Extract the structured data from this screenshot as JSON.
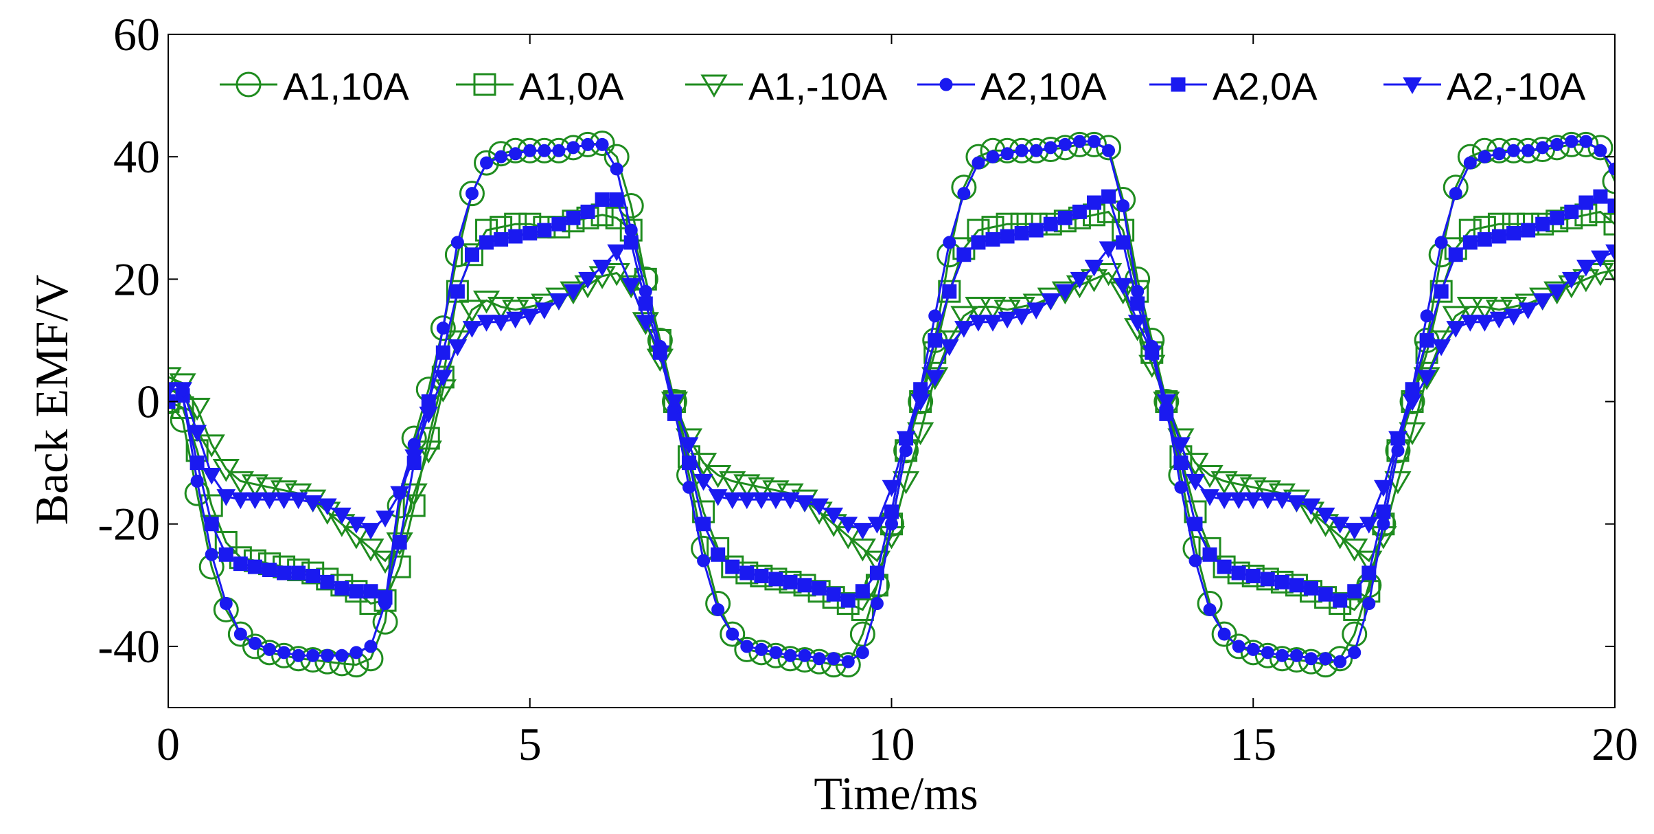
{
  "chart_data": {
    "type": "line",
    "title": "",
    "xlabel": "Time/ms",
    "ylabel": "Back EMF/V",
    "xlim": [
      0,
      20
    ],
    "ylim": [
      -50,
      60
    ],
    "xticks": [
      0,
      5,
      10,
      15,
      20
    ],
    "yticks": [
      -40,
      -20,
      0,
      20,
      40,
      60
    ],
    "grid": false,
    "legend_placement": "top",
    "x": [
      0.0,
      0.2,
      0.4,
      0.6,
      0.8,
      1.0,
      1.2,
      1.4,
      1.6,
      1.8,
      2.0,
      2.2,
      2.4,
      2.6,
      2.8,
      3.0,
      3.2,
      3.4,
      3.6,
      3.8,
      4.0,
      4.2,
      4.4,
      4.6,
      4.8,
      5.0,
      5.2,
      5.4,
      5.6,
      5.8,
      6.0,
      6.2,
      6.4,
      6.6,
      6.8,
      7.0,
      7.2,
      7.4,
      7.6,
      7.8,
      8.0,
      8.2,
      8.4,
      8.6,
      8.8,
      9.0,
      9.2,
      9.4,
      9.6,
      9.8,
      10.0,
      10.2,
      10.4,
      10.6,
      10.8,
      11.0,
      11.2,
      11.4,
      11.6,
      11.8,
      12.0,
      12.2,
      12.4,
      12.6,
      12.8,
      13.0,
      13.2,
      13.4,
      13.6,
      13.8,
      14.0,
      14.2,
      14.4,
      14.6,
      14.8,
      15.0,
      15.2,
      15.4,
      15.6,
      15.8,
      16.0,
      16.2,
      16.4,
      16.6,
      16.8,
      17.0,
      17.2,
      17.4,
      17.6,
      17.8,
      18.0,
      18.2,
      18.4,
      18.6,
      18.8,
      19.0,
      19.2,
      19.4,
      19.6,
      19.8,
      20.0
    ],
    "series": [
      {
        "name": "A1,10A",
        "color": "#1f8c1f",
        "marker": "circle",
        "values": [
          0.0,
          -3.0,
          -15.0,
          -27.0,
          -34.0,
          -38.0,
          -40.0,
          -41.0,
          -41.5,
          -42.0,
          -42.2,
          -42.5,
          -42.8,
          -43.0,
          -42.0,
          -36.0,
          -17.0,
          -6.0,
          2.0,
          12.0,
          24.0,
          34.0,
          39.0,
          40.5,
          41.0,
          41.0,
          41.0,
          41.0,
          41.5,
          42.0,
          42.2,
          40.0,
          32.0,
          20.0,
          10.0,
          0.0,
          -12.0,
          -24.0,
          -33.0,
          -38.0,
          -40.5,
          -41.0,
          -41.5,
          -42.0,
          -42.2,
          -42.5,
          -43.0,
          -43.0,
          -38.0,
          -30.0,
          -20.0,
          -8.0,
          0.0,
          10.0,
          24.0,
          35.0,
          40.0,
          41.0,
          41.0,
          41.0,
          41.0,
          41.2,
          41.5,
          42.0,
          42.0,
          41.5,
          33.0,
          20.0,
          10.0,
          0.0,
          -12.0,
          -24.0,
          -33.0,
          -38.0,
          -40.0,
          -41.0,
          -41.5,
          -42.0,
          -42.2,
          -42.5,
          -43.0,
          -42.0,
          -38.0,
          -30.0,
          -20.0,
          -8.0,
          0.0,
          10.0,
          24.0,
          35.0,
          40.0,
          41.0,
          41.0,
          41.0,
          41.0,
          41.2,
          41.5,
          42.0,
          42.0,
          41.5,
          36.0
        ]
      },
      {
        "name": "A1,0A",
        "color": "#1f8c1f",
        "marker": "square",
        "values": [
          0.0,
          -1.0,
          -8.0,
          -17.0,
          -23.0,
          -25.5,
          -26.0,
          -26.5,
          -27.0,
          -27.5,
          -28.0,
          -29.0,
          -30.0,
          -31.0,
          -33.0,
          -32.5,
          -27.0,
          -17.0,
          -6.0,
          4.0,
          18.0,
          24.0,
          28.0,
          28.5,
          29.0,
          29.0,
          28.5,
          28.5,
          29.5,
          30.0,
          30.5,
          30.0,
          28.0,
          20.0,
          10.0,
          0.0,
          -9.0,
          -18.0,
          -24.0,
          -27.0,
          -28.0,
          -28.5,
          -29.0,
          -29.5,
          -30.0,
          -31.0,
          -32.0,
          -33.0,
          -34.0,
          -30.0,
          -20.0,
          -8.0,
          0.0,
          8.0,
          18.0,
          25.0,
          28.0,
          28.5,
          29.0,
          29.0,
          29.0,
          29.0,
          29.5,
          30.0,
          30.5,
          31.0,
          28.0,
          18.0,
          8.0,
          0.0,
          -9.0,
          -18.0,
          -24.0,
          -27.0,
          -28.0,
          -28.5,
          -29.0,
          -29.5,
          -30.0,
          -31.0,
          -32.0,
          -33.0,
          -34.0,
          -31.0,
          -20.0,
          -8.0,
          0.0,
          8.0,
          18.0,
          25.0,
          28.0,
          28.5,
          29.0,
          29.0,
          29.0,
          29.0,
          29.5,
          30.0,
          30.5,
          31.0,
          29.0
        ]
      },
      {
        "name": "A1,-10A",
        "color": "#1f8c1f",
        "marker": "triangle-down",
        "values": [
          4.0,
          3.0,
          -1.0,
          -7.0,
          -11.0,
          -13.0,
          -13.5,
          -14.0,
          -14.5,
          -15.0,
          -16.0,
          -18.0,
          -20.0,
          -22.0,
          -24.0,
          -26.0,
          -23.0,
          -15.0,
          -8.0,
          2.0,
          10.0,
          15.0,
          16.5,
          15.5,
          15.0,
          15.5,
          16.0,
          17.0,
          18.0,
          19.0,
          20.5,
          21.0,
          19.0,
          13.0,
          7.0,
          0.0,
          -6.0,
          -10.0,
          -12.0,
          -13.0,
          -13.5,
          -14.0,
          -14.5,
          -15.0,
          -16.0,
          -18.0,
          -20.0,
          -22.0,
          -24.0,
          -26.0,
          -22.0,
          -13.0,
          -5.0,
          4.0,
          10.0,
          14.0,
          15.5,
          15.5,
          15.0,
          15.5,
          16.0,
          17.0,
          18.0,
          19.0,
          20.0,
          21.0,
          18.0,
          12.0,
          6.0,
          0.0,
          -6.0,
          -10.0,
          -12.0,
          -13.0,
          -13.5,
          -14.0,
          -14.5,
          -15.0,
          -16.0,
          -18.0,
          -20.0,
          -22.0,
          -24.0,
          -26.0,
          -22.0,
          -13.0,
          -5.0,
          4.0,
          10.0,
          14.0,
          15.5,
          15.5,
          15.0,
          15.5,
          16.0,
          17.0,
          18.0,
          19.0,
          20.0,
          21.0,
          21.5
        ]
      },
      {
        "name": "A2,10A",
        "color": "#1a1af0",
        "marker": "dot",
        "values": [
          0.0,
          1.0,
          -13.0,
          -25.0,
          -33.0,
          -38.0,
          -39.5,
          -40.5,
          -41.0,
          -41.5,
          -41.5,
          -41.5,
          -41.5,
          -41.0,
          -40.0,
          -33.0,
          -15.0,
          -7.0,
          0.0,
          12.0,
          26.0,
          34.0,
          39.0,
          40.0,
          40.5,
          41.0,
          41.0,
          41.0,
          41.5,
          42.0,
          42.0,
          38.0,
          28.0,
          18.0,
          9.0,
          -1.0,
          -14.0,
          -26.0,
          -34.0,
          -38.0,
          -40.0,
          -40.5,
          -41.0,
          -41.5,
          -41.5,
          -42.0,
          -42.0,
          -42.5,
          -41.0,
          -33.0,
          -20.0,
          -8.0,
          2.0,
          14.0,
          26.0,
          34.0,
          39.0,
          40.0,
          40.5,
          41.0,
          41.0,
          41.5,
          42.0,
          42.5,
          42.5,
          41.0,
          32.0,
          18.0,
          9.0,
          -1.0,
          -14.0,
          -26.0,
          -34.0,
          -38.0,
          -40.0,
          -40.5,
          -41.0,
          -41.5,
          -41.5,
          -42.0,
          -42.0,
          -42.5,
          -41.0,
          -33.0,
          -20.0,
          -8.0,
          2.0,
          14.0,
          26.0,
          34.0,
          39.0,
          40.0,
          40.5,
          41.0,
          41.0,
          41.5,
          42.0,
          42.5,
          42.5,
          41.0,
          38.0
        ]
      },
      {
        "name": "A2,0A",
        "color": "#1a1af0",
        "marker": "square-filled",
        "values": [
          0.0,
          1.0,
          -10.0,
          -20.0,
          -25.0,
          -26.5,
          -27.0,
          -27.5,
          -28.0,
          -28.0,
          -28.5,
          -29.5,
          -30.5,
          -31.0,
          -31.0,
          -32.0,
          -23.0,
          -10.0,
          0.0,
          8.0,
          18.0,
          24.0,
          26.0,
          26.5,
          27.0,
          27.5,
          28.0,
          29.0,
          30.0,
          31.0,
          33.0,
          33.0,
          26.0,
          16.0,
          8.0,
          -2.0,
          -10.0,
          -20.0,
          -25.0,
          -27.0,
          -28.0,
          -28.5,
          -29.0,
          -29.5,
          -30.0,
          -30.5,
          -31.5,
          -32.5,
          -31.0,
          -28.0,
          -18.0,
          -6.0,
          2.0,
          10.0,
          18.0,
          24.0,
          26.0,
          26.5,
          27.0,
          27.5,
          28.0,
          29.0,
          30.0,
          31.0,
          32.5,
          33.5,
          26.0,
          16.0,
          8.0,
          -2.0,
          -10.0,
          -20.0,
          -25.0,
          -27.0,
          -28.0,
          -28.5,
          -29.0,
          -29.5,
          -30.0,
          -30.5,
          -31.5,
          -32.5,
          -31.0,
          -28.0,
          -18.0,
          -6.0,
          2.0,
          10.0,
          18.0,
          24.0,
          26.0,
          26.5,
          27.0,
          27.5,
          28.0,
          29.0,
          30.0,
          31.0,
          32.5,
          33.5,
          32.0
        ]
      },
      {
        "name": "A2,-10A",
        "color": "#1a1af0",
        "marker": "triangle-down-filled",
        "values": [
          2.0,
          2.0,
          -5.0,
          -12.0,
          -15.5,
          -16.0,
          -16.0,
          -16.0,
          -16.0,
          -16.0,
          -16.5,
          -17.0,
          -18.5,
          -20.0,
          -21.0,
          -19.0,
          -15.0,
          -9.0,
          -2.0,
          4.0,
          9.0,
          12.0,
          13.0,
          13.0,
          13.5,
          14.0,
          15.0,
          16.5,
          18.0,
          20.0,
          22.0,
          24.5,
          19.0,
          13.0,
          8.0,
          0.0,
          -7.0,
          -13.0,
          -15.5,
          -16.0,
          -16.0,
          -16.0,
          -16.0,
          -16.0,
          -16.5,
          -17.0,
          -18.5,
          -20.0,
          -21.0,
          -20.0,
          -14.0,
          -6.0,
          0.0,
          4.0,
          9.0,
          12.0,
          13.0,
          13.0,
          13.5,
          14.0,
          15.0,
          16.5,
          18.0,
          20.0,
          22.0,
          25.0,
          19.0,
          13.0,
          8.0,
          0.0,
          -7.0,
          -13.0,
          -15.5,
          -16.0,
          -16.0,
          -16.0,
          -16.0,
          -16.0,
          -16.5,
          -17.0,
          -18.5,
          -20.0,
          -21.0,
          -20.0,
          -14.0,
          -6.0,
          0.0,
          4.0,
          9.0,
          12.0,
          13.0,
          13.0,
          13.5,
          14.0,
          15.0,
          16.5,
          18.0,
          20.0,
          22.0,
          23.5,
          24.5
        ]
      }
    ]
  }
}
